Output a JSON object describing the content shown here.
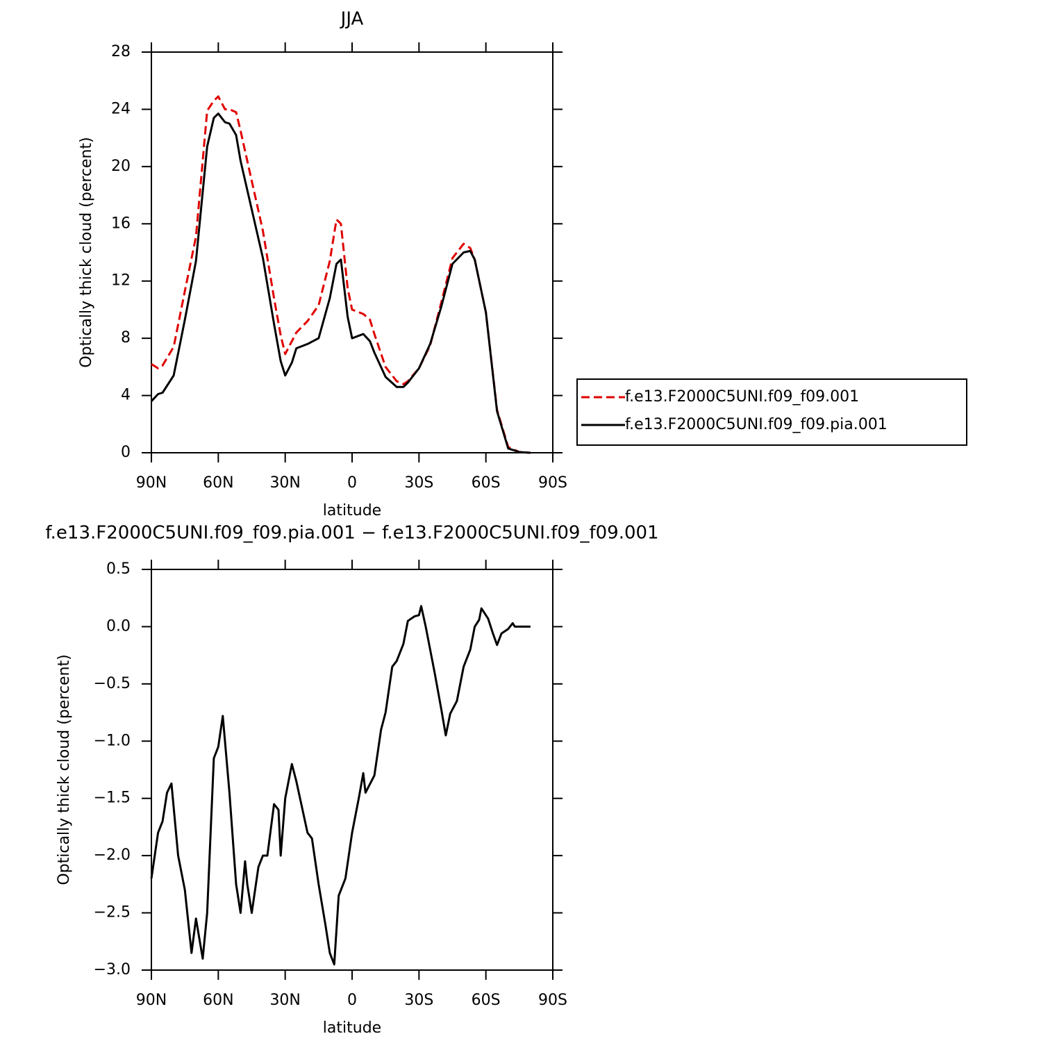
{
  "chart_data": [
    {
      "type": "line",
      "title": "JJA",
      "xlabel": "latitude",
      "ylabel": "Optically thick cloud (percent)",
      "xlim": [
        90,
        -90
      ],
      "ylim": [
        0,
        28
      ],
      "xticks": [
        {
          "value": 90,
          "label": "90N"
        },
        {
          "value": 60,
          "label": "60N"
        },
        {
          "value": 30,
          "label": "30N"
        },
        0,
        {
          "value": -30,
          "label": "30S"
        },
        {
          "value": -60,
          "label": "60S"
        },
        {
          "value": -90,
          "label": "90S"
        }
      ],
      "yticks": [
        0,
        4,
        8,
        12,
        16,
        20,
        24,
        28
      ],
      "legend": "right",
      "x": [
        90,
        87,
        85,
        80,
        75,
        70,
        65,
        62,
        60,
        57,
        55,
        52,
        50,
        45,
        40,
        35,
        32,
        30,
        27,
        25,
        20,
        15,
        10,
        7,
        5,
        2,
        0,
        -5,
        -8,
        -10,
        -15,
        -20,
        -23,
        -25,
        -30,
        -35,
        -40,
        -45,
        -50,
        -53,
        -55,
        -60,
        -65,
        -70,
        -75,
        -80
      ],
      "series": [
        {
          "name": "f.e13.F2000C5UNI.f09_f09.001",
          "color": "#e00000",
          "dashed": true,
          "values": [
            6.2,
            5.9,
            6.1,
            7.4,
            11.3,
            15.1,
            23.9,
            24.6,
            24.9,
            24.0,
            24.0,
            23.8,
            22.5,
            19.0,
            15.5,
            10.8,
            8.2,
            6.9,
            7.8,
            8.4,
            9.2,
            10.3,
            13.4,
            16.3,
            16.0,
            11.5,
            10.0,
            9.7,
            9.3,
            8.3,
            6.0,
            5.0,
            4.8,
            5.0,
            5.9,
            7.5,
            10.5,
            13.6,
            14.6,
            14.3,
            13.5,
            9.8,
            3.0,
            0.4,
            0.05,
            0
          ]
        },
        {
          "name": "f.e13.F2000C5UNI.f09_f09.pia.001",
          "color": "#000000",
          "dashed": false,
          "values": [
            3.6,
            4.1,
            4.2,
            5.4,
            9.3,
            13.4,
            21.4,
            23.4,
            23.7,
            23.1,
            23.0,
            22.2,
            20.4,
            17.0,
            13.6,
            9.0,
            6.4,
            5.4,
            6.3,
            7.3,
            7.6,
            8.0,
            10.8,
            13.2,
            13.5,
            9.5,
            8.0,
            8.3,
            7.8,
            7.0,
            5.3,
            4.6,
            4.6,
            4.9,
            5.9,
            7.6,
            10.2,
            13.2,
            14.0,
            14.1,
            13.5,
            9.8,
            2.9,
            0.3,
            0.05,
            0
          ]
        }
      ]
    },
    {
      "type": "line",
      "title": "f.e13.F2000C5UNI.f09_f09.pia.001 − f.e13.F2000C5UNI.f09_f09.001",
      "xlabel": "latitude",
      "ylabel": "Optically thick cloud (percent)",
      "xlim": [
        90,
        -90
      ],
      "ylim": [
        -3.0,
        0.5
      ],
      "xticks": [
        {
          "value": 90,
          "label": "90N"
        },
        {
          "value": 60,
          "label": "60N"
        },
        {
          "value": 30,
          "label": "30N"
        },
        0,
        {
          "value": -30,
          "label": "30S"
        },
        {
          "value": -60,
          "label": "60S"
        },
        {
          "value": -90,
          "label": "90S"
        }
      ],
      "yticks": [
        {
          "value": -3.0,
          "label": "−3.0"
        },
        {
          "value": -2.5,
          "label": "−2.5"
        },
        {
          "value": -2.0,
          "label": "−2.0"
        },
        {
          "value": -1.5,
          "label": "−1.5"
        },
        {
          "value": -1.0,
          "label": "−1.0"
        },
        {
          "value": -0.5,
          "label": "−0.5"
        },
        {
          "value": 0,
          "label": "0.0"
        },
        0.5
      ],
      "x": [
        90,
        87,
        85,
        83,
        81,
        78,
        75,
        72,
        70,
        67,
        65,
        62,
        60,
        58,
        55,
        52,
        50,
        48,
        47,
        45,
        42,
        40,
        38,
        35,
        33,
        32,
        30,
        27,
        25,
        20,
        18,
        15,
        12,
        10,
        8,
        6,
        3,
        0,
        -3,
        -5,
        -6,
        -10,
        -13,
        -15,
        -18,
        -20,
        -23,
        -25,
        -28,
        -30,
        -31,
        -33,
        -37,
        -40,
        -42,
        -44,
        -47,
        -50,
        -53,
        -55,
        -57,
        -58,
        -61,
        -63,
        -65,
        -67,
        -70,
        -72,
        -73,
        -75,
        -80
      ],
      "color": "#000000",
      "values": [
        -2.2,
        -1.8,
        -1.7,
        -1.45,
        -1.37,
        -2.0,
        -2.3,
        -2.85,
        -2.55,
        -2.9,
        -2.5,
        -1.15,
        -1.05,
        -0.78,
        -1.45,
        -2.25,
        -2.5,
        -2.05,
        -2.25,
        -2.5,
        -2.1,
        -2.0,
        -2.0,
        -1.55,
        -1.6,
        -2.0,
        -1.5,
        -1.2,
        -1.35,
        -1.8,
        -1.85,
        -2.25,
        -2.6,
        -2.85,
        -2.95,
        -2.35,
        -2.2,
        -1.8,
        -1.5,
        -1.28,
        -1.45,
        -1.3,
        -0.9,
        -0.75,
        -0.35,
        -0.3,
        -0.15,
        0.05,
        0.09,
        0.1,
        0.18,
        0.0,
        -0.4,
        -0.72,
        -0.95,
        -0.76,
        -0.65,
        -0.35,
        -0.2,
        0.0,
        0.06,
        0.16,
        0.07,
        -0.05,
        -0.16,
        -0.06,
        -0.02,
        0.03,
        0.0,
        0.0,
        0.0
      ]
    }
  ]
}
